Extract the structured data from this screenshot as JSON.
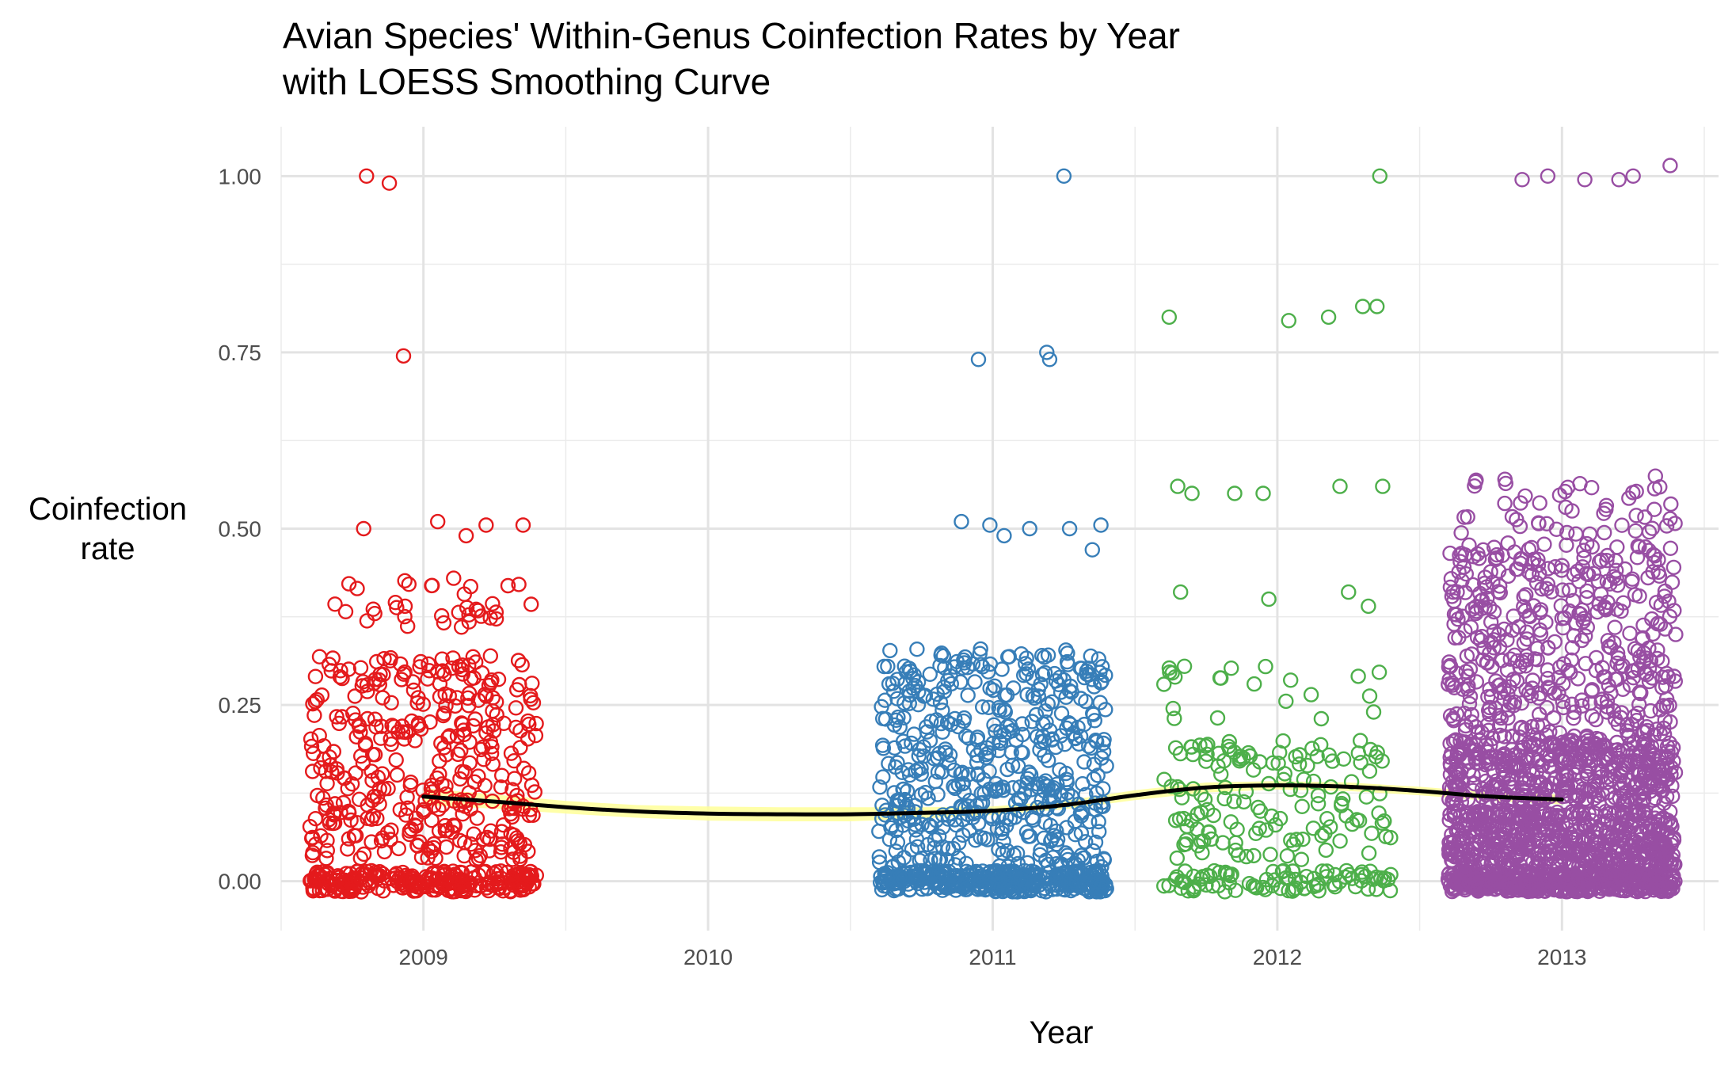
{
  "chart_data": {
    "type": "scatter",
    "title": "Avian Species' Within-Genus Coinfection Rates by Year",
    "subtitle": "with LOESS Smoothing Curve",
    "xlabel": "Year",
    "ylabel_lines": [
      "Coinfection",
      "rate"
    ],
    "x_ticks": [
      2009,
      2010,
      2011,
      2012,
      2013
    ],
    "x_tick_labels": [
      "2009",
      "2010",
      "2011",
      "2012",
      "2013"
    ],
    "y_ticks": [
      0,
      0.25,
      0.5,
      0.75,
      1.0
    ],
    "y_tick_labels": [
      "0.00",
      "0.25",
      "0.50",
      "0.75",
      "1.00"
    ],
    "xlim": [
      2008.5,
      2013.55
    ],
    "ylim": [
      -0.07,
      1.07
    ],
    "grid": true,
    "legend": "none",
    "jitter_width_years": 0.4,
    "series": [
      {
        "year": 2009,
        "color": "#E41A1C",
        "outliers": [
          [
            2008.8,
            1.0
          ],
          [
            2008.88,
            0.99
          ],
          [
            2008.93,
            0.745
          ],
          [
            2008.79,
            0.5
          ],
          [
            2009.05,
            0.51
          ],
          [
            2009.22,
            0.505
          ],
          [
            2009.35,
            0.505
          ],
          [
            2009.15,
            0.49
          ]
        ],
        "bands": [
          {
            "y_min": 0.36,
            "y_max": 0.43,
            "count": 36
          },
          {
            "y_min": 0.13,
            "y_max": 0.32,
            "count": 220
          },
          {
            "y_min": 0.03,
            "y_max": 0.13,
            "count": 150
          },
          {
            "y_min": -0.015,
            "y_max": 0.015,
            "count": 260
          }
        ]
      },
      {
        "year": 2011,
        "color": "#377EB8",
        "outliers": [
          [
            2011.25,
            1.0
          ],
          [
            2010.95,
            0.74
          ],
          [
            2011.19,
            0.75
          ],
          [
            2011.2,
            0.74
          ],
          [
            2010.89,
            0.51
          ],
          [
            2011.13,
            0.5
          ],
          [
            2011.27,
            0.5
          ],
          [
            2011.35,
            0.47
          ],
          [
            2011.38,
            0.505
          ],
          [
            2010.99,
            0.505
          ],
          [
            2011.04,
            0.49
          ]
        ],
        "bands": [
          {
            "y_min": 0.13,
            "y_max": 0.33,
            "count": 300
          },
          {
            "y_min": 0.02,
            "y_max": 0.13,
            "count": 200
          },
          {
            "y_min": -0.015,
            "y_max": 0.015,
            "count": 340
          }
        ]
      },
      {
        "year": 2012,
        "color": "#4DAF4A",
        "outliers": [
          [
            2012.36,
            1.0
          ],
          [
            2011.62,
            0.8
          ],
          [
            2012.04,
            0.795
          ],
          [
            2012.18,
            0.8
          ],
          [
            2012.3,
            0.815
          ],
          [
            2012.35,
            0.815
          ],
          [
            2011.65,
            0.56
          ],
          [
            2011.7,
            0.55
          ],
          [
            2011.85,
            0.55
          ],
          [
            2011.95,
            0.55
          ],
          [
            2012.22,
            0.56
          ],
          [
            2012.37,
            0.56
          ],
          [
            2011.66,
            0.41
          ],
          [
            2011.97,
            0.4
          ],
          [
            2012.25,
            0.41
          ],
          [
            2012.32,
            0.39
          ]
        ],
        "bands": [
          {
            "y_min": 0.22,
            "y_max": 0.31,
            "count": 22
          },
          {
            "y_min": 0.03,
            "y_max": 0.2,
            "count": 140
          },
          {
            "y_min": -0.015,
            "y_max": 0.015,
            "count": 90
          }
        ]
      },
      {
        "year": 2013,
        "color": "#984EA3",
        "outliers": [
          [
            2012.86,
            0.995
          ],
          [
            2012.95,
            1.0
          ],
          [
            2013.08,
            0.995
          ],
          [
            2013.2,
            0.995
          ],
          [
            2013.25,
            1.0
          ],
          [
            2013.38,
            1.015
          ]
        ],
        "bands": [
          {
            "y_min": 0.49,
            "y_max": 0.575,
            "count": 50
          },
          {
            "y_min": 0.36,
            "y_max": 0.48,
            "count": 180
          },
          {
            "y_min": 0.2,
            "y_max": 0.36,
            "count": 260
          },
          {
            "y_min": 0.11,
            "y_max": 0.2,
            "count": 420
          },
          {
            "y_min": 0.02,
            "y_max": 0.1,
            "count": 520
          },
          {
            "y_min": -0.015,
            "y_max": 0.015,
            "count": 480
          }
        ]
      }
    ],
    "loess": {
      "color": "#000000",
      "band_color": "#FFFF99",
      "x": [
        2009.0,
        2009.25,
        2009.5,
        2009.75,
        2010.0,
        2010.25,
        2010.5,
        2010.75,
        2011.0,
        2011.25,
        2011.5,
        2011.75,
        2012.0,
        2012.25,
        2012.5,
        2012.75,
        2013.0
      ],
      "y": [
        0.12,
        0.113,
        0.105,
        0.099,
        0.096,
        0.095,
        0.095,
        0.097,
        0.1,
        0.108,
        0.122,
        0.133,
        0.136,
        0.134,
        0.128,
        0.12,
        0.116
      ],
      "se": [
        0.012,
        0.01,
        0.009,
        0.009,
        0.01,
        0.01,
        0.01,
        0.008,
        0.006,
        0.006,
        0.007,
        0.007,
        0.006,
        0.006,
        0.006,
        0.006,
        0.007
      ]
    }
  }
}
